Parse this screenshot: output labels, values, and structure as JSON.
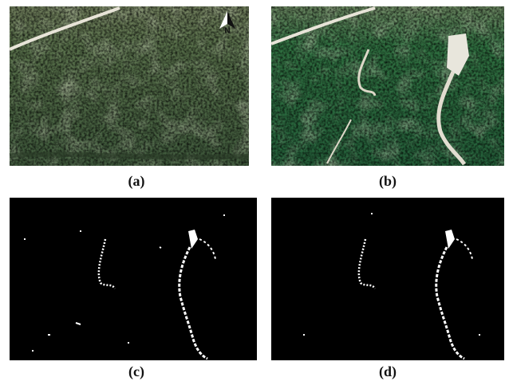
{
  "panels": [
    {
      "label": "(a)"
    },
    {
      "label": "(b)"
    },
    {
      "label": "(c)"
    },
    {
      "label": "(d)"
    }
  ],
  "north_label": "N"
}
